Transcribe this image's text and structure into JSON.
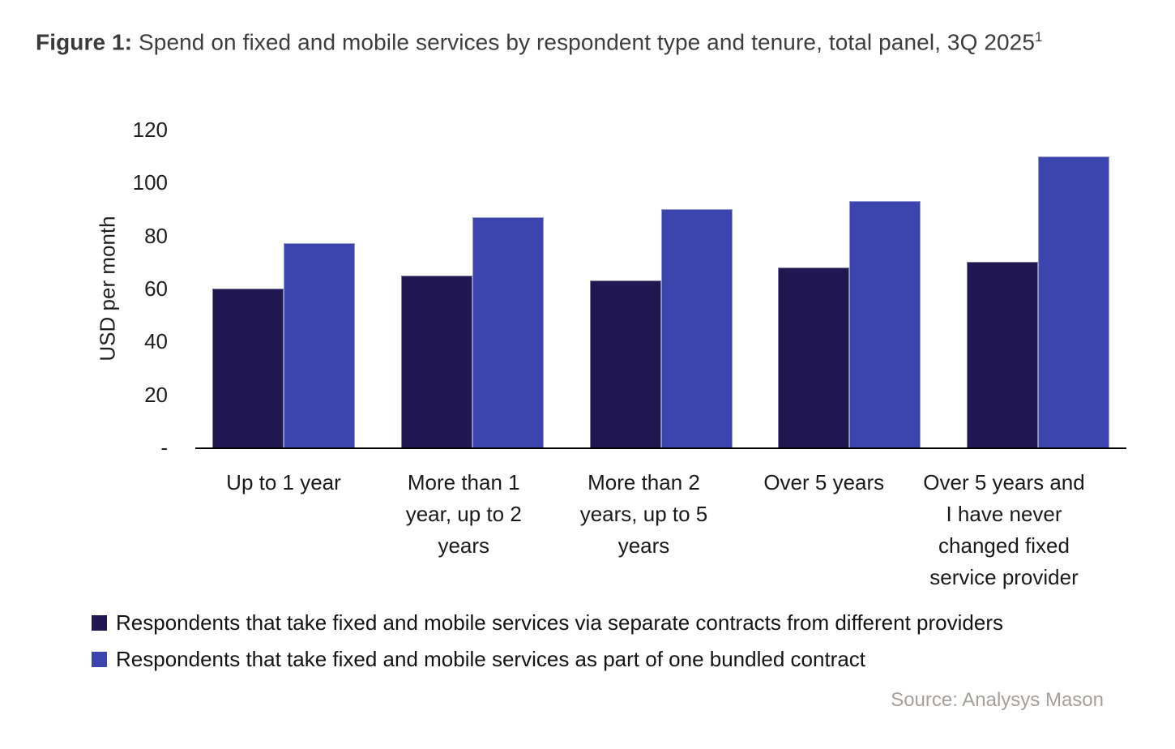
{
  "figure": {
    "label": "Figure 1:",
    "title": " Spend on fixed and mobile services by respondent type and tenure, total panel, 3Q 2025",
    "footnote_marker": "1"
  },
  "chart_data": {
    "type": "bar",
    "title": "Spend on fixed and mobile services by respondent type and tenure, total panel, 3Q 2025",
    "xlabel": "",
    "ylabel": "USD per month",
    "ylim": [
      0,
      120
    ],
    "grid": false,
    "legend_position": "bottom-left",
    "ytick_values": [
      120,
      100,
      80,
      60,
      40,
      20,
      0
    ],
    "ytick_labels": [
      "120",
      "100",
      "80",
      "60",
      "40",
      "20",
      "-"
    ],
    "categories": [
      "Up to 1 year",
      "More than 1 year, up to 2 years",
      "More than 2 years, up to 5 years",
      "Over 5 years",
      "Over 5 years and I have never changed fixed service provider"
    ],
    "category_labels_wrapped": [
      "Up to 1 year",
      "More than 1\nyear, up to 2\nyears",
      "More than 2\nyears, up to 5\nyears",
      "Over 5 years",
      "Over 5 years and\nI have never\nchanged fixed\nservice provider"
    ],
    "series": [
      {
        "name": "Respondents that take fixed and mobile services via separate contracts from different providers",
        "color": "#211750",
        "values": [
          60,
          65,
          63,
          68,
          70
        ]
      },
      {
        "name": "Respondents that take fixed and mobile services as part of one bundled contract",
        "color": "#3c45ae",
        "values": [
          77,
          87,
          90,
          93,
          110
        ]
      }
    ]
  },
  "source": "Source: Analysys Mason"
}
